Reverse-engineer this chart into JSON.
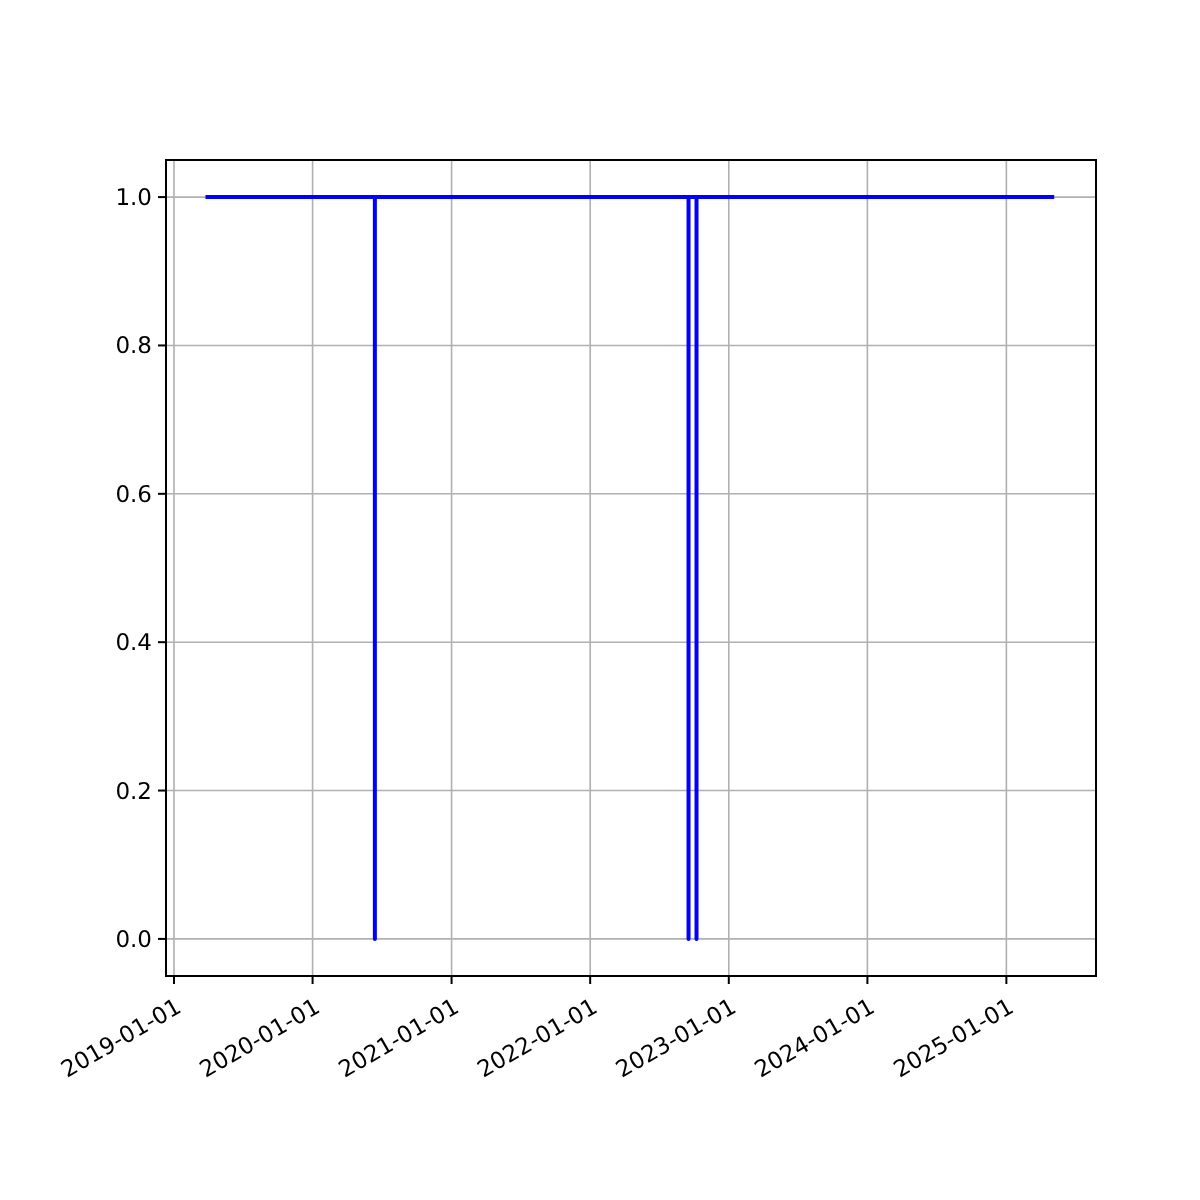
{
  "chart_data": {
    "type": "line",
    "x": [
      "2019-03-25",
      "2020-06-13",
      "2020-06-13",
      "2020-06-13",
      "2022-09-17",
      "2022-09-17",
      "2022-09-17",
      "2022-10-08",
      "2022-10-08",
      "2022-10-08",
      "2025-05-07"
    ],
    "series": [
      {
        "color": "#0000ff",
        "values": [
          1,
          1,
          0,
          1,
          1,
          0,
          1,
          1,
          0,
          1,
          1
        ]
      }
    ],
    "xlim": [
      "2018-12-11",
      "2025-08-25"
    ],
    "xticks": [
      {
        "value": "2019-01-01",
        "label": "2019-01-01"
      },
      {
        "value": "2020-01-01",
        "label": "2020-01-01"
      },
      {
        "value": "2021-01-01",
        "label": "2021-01-01"
      },
      {
        "value": "2022-01-01",
        "label": "2022-01-01"
      },
      {
        "value": "2023-01-01",
        "label": "2023-01-01"
      },
      {
        "value": "2024-01-01",
        "label": "2024-01-01"
      },
      {
        "value": "2025-01-01",
        "label": "2025-01-01"
      }
    ],
    "ylim": [
      -0.05,
      1.05
    ],
    "yticks": [
      {
        "value": 0,
        "label": "0.0"
      },
      {
        "value": 0.2,
        "label": "0.2"
      },
      {
        "value": 0.4,
        "label": "0.4"
      },
      {
        "value": 0.6,
        "label": "0.6"
      },
      {
        "value": 0.8,
        "label": "0.8"
      },
      {
        "value": 1,
        "label": "1.0"
      }
    ],
    "grid": true
  }
}
